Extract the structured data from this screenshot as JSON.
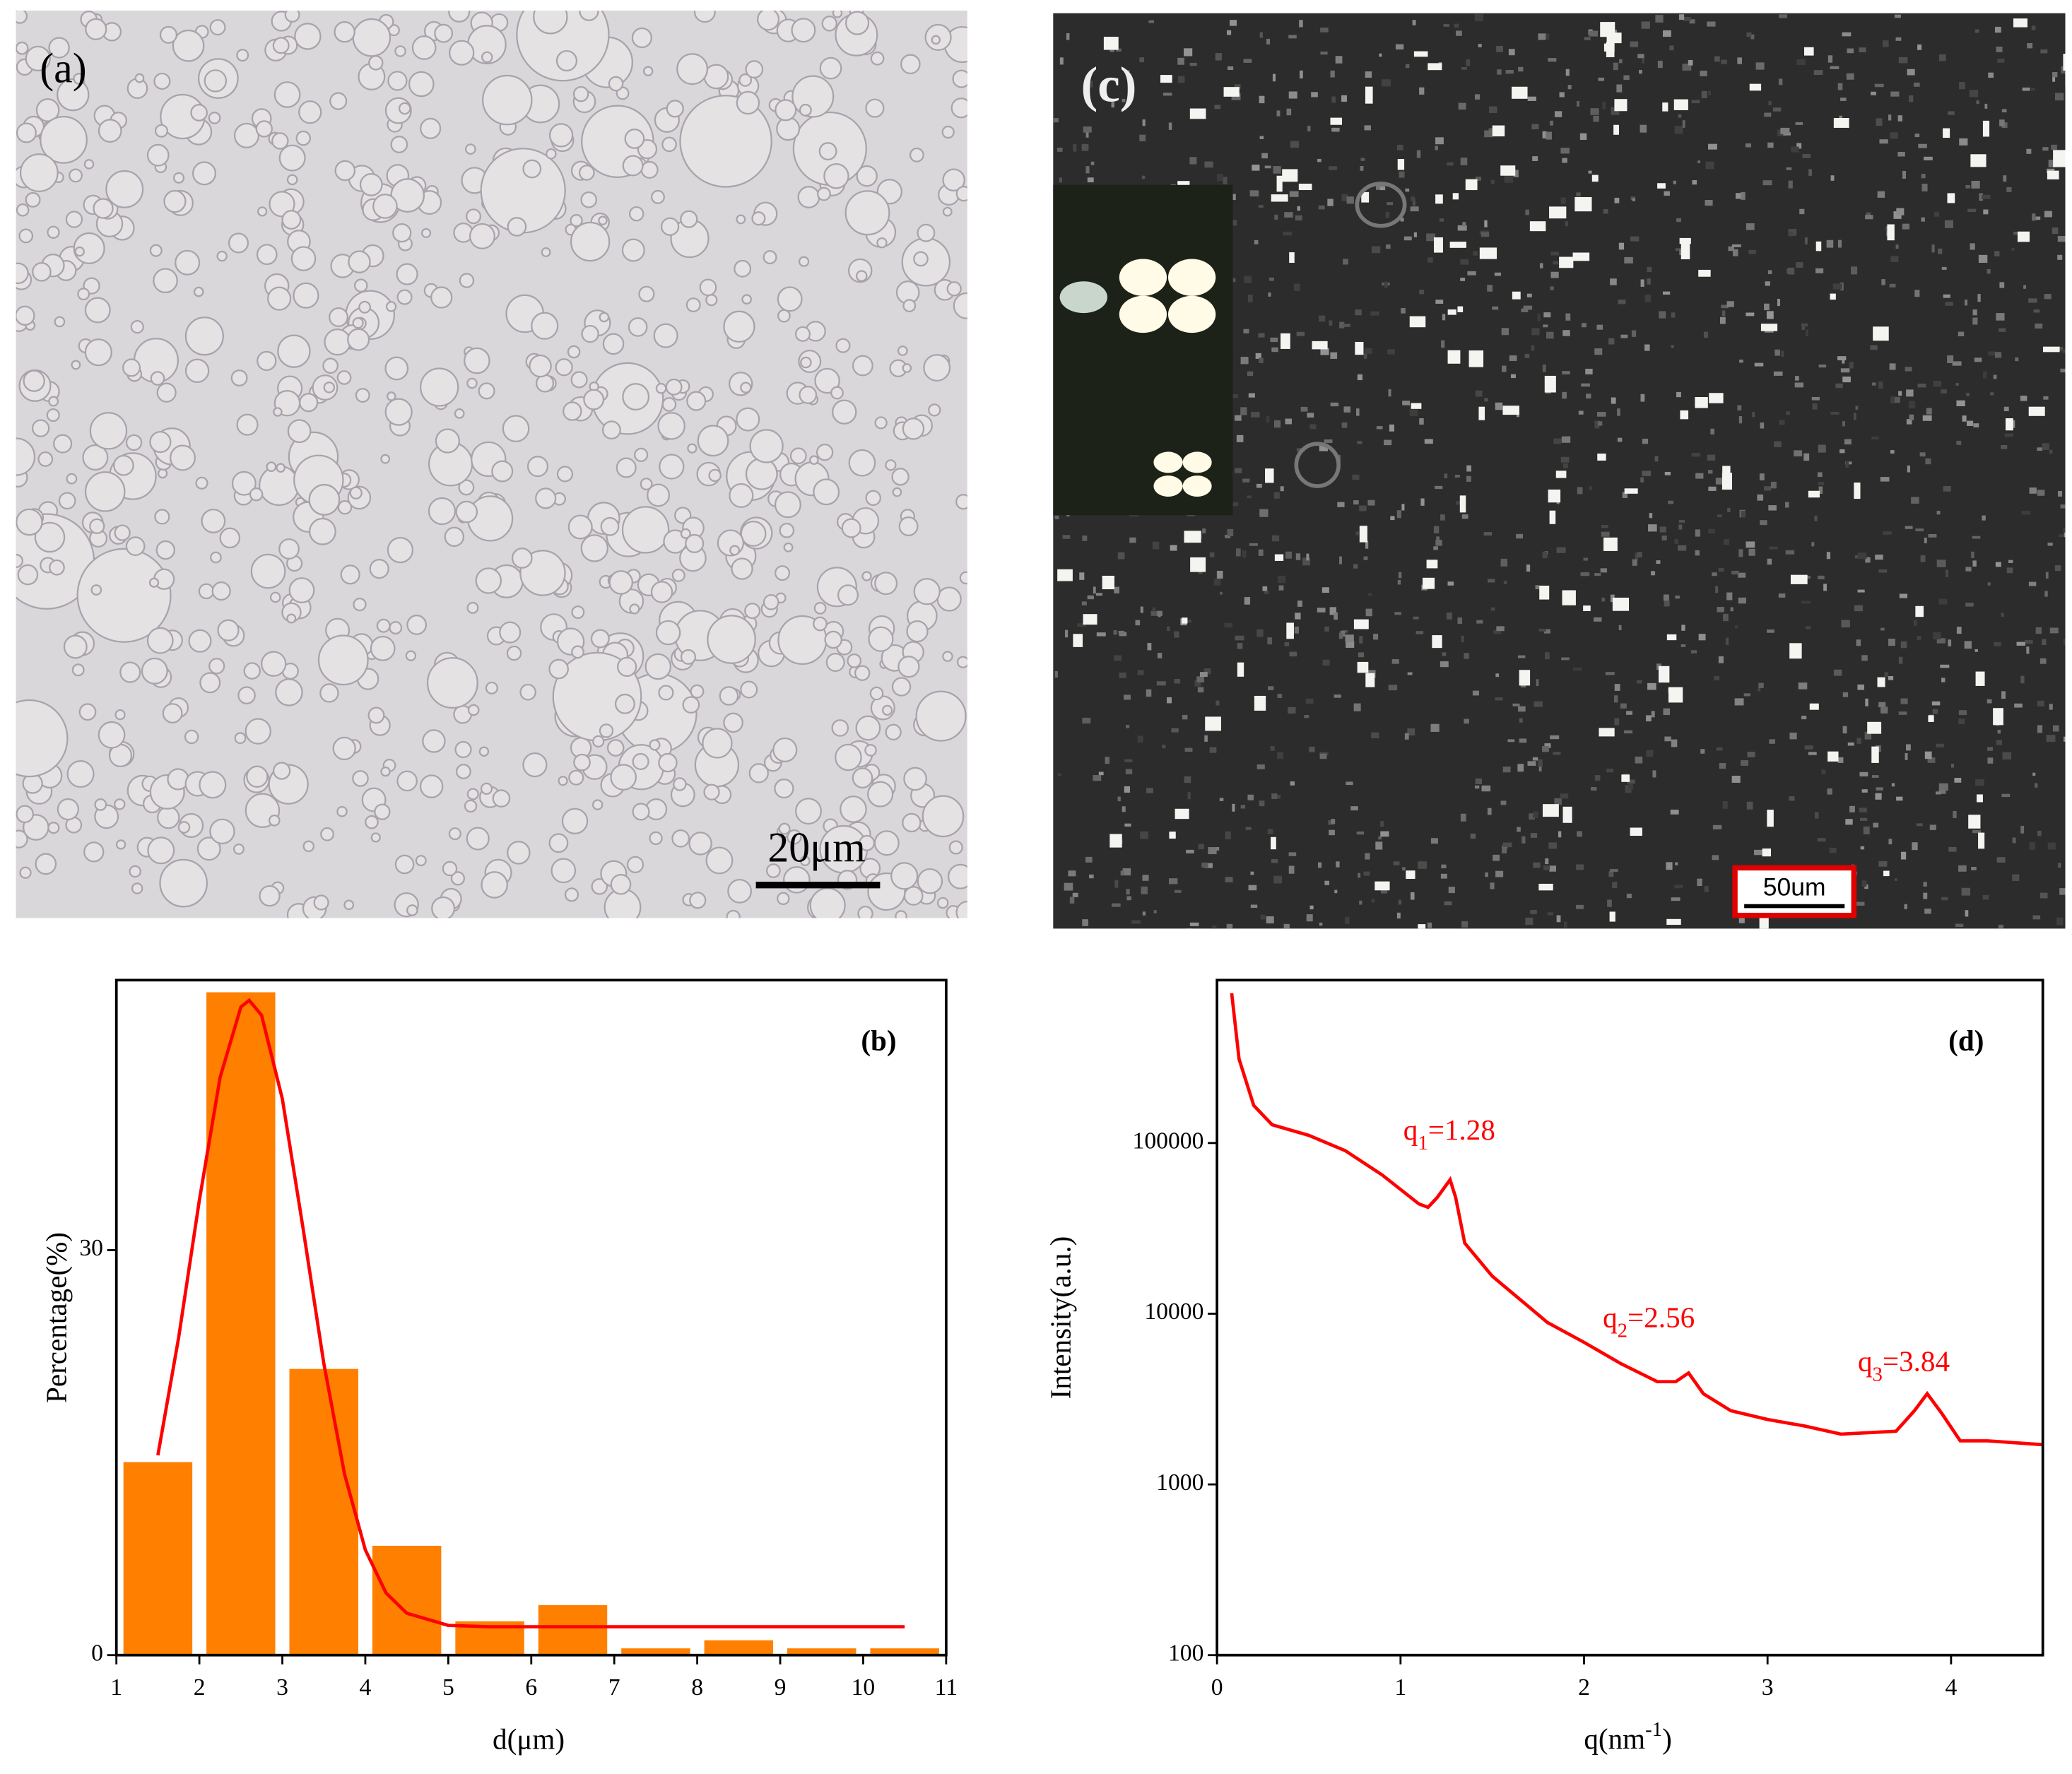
{
  "panels": {
    "a": {
      "label": "(a)",
      "scale_bar": "20μm"
    },
    "c": {
      "label": "(c)",
      "scale_bar": "50um"
    }
  },
  "chart_data": [
    {
      "type": "histogram",
      "panel_label": "(b)",
      "x_label": "d(μm)",
      "y_label": "Percentage(%)",
      "bins": [
        1,
        2,
        3,
        4,
        5,
        6,
        7,
        8,
        9,
        10,
        11
      ],
      "values": [
        14.3,
        49.1,
        21.2,
        8.1,
        2.5,
        3.7,
        0.5,
        1.1,
        0.5,
        0.5
      ],
      "color": "#ff8000",
      "fit_color": "#ff0000",
      "fit_x": [
        1.5,
        1.75,
        2,
        2.25,
        2.5,
        2.6,
        2.75,
        3,
        3.25,
        3.5,
        3.75,
        4,
        4.25,
        4.5,
        5,
        5.5,
        6,
        7,
        8,
        9,
        10,
        10.5
      ],
      "fit_y": [
        14.8,
        23.5,
        33.7,
        42.8,
        48.0,
        48.5,
        47.4,
        41.2,
        31.6,
        21.6,
        13.4,
        7.8,
        4.6,
        3.1,
        2.2,
        2.1,
        2.1,
        2.1,
        2.1,
        2.1,
        2.1,
        2.1
      ],
      "xlim": [
        1,
        11
      ],
      "xticks": [
        1,
        2,
        3,
        4,
        5,
        6,
        7,
        8,
        9,
        10,
        11
      ],
      "ylim": [
        0,
        50
      ],
      "yticks": [
        0,
        30
      ]
    },
    {
      "type": "line",
      "panel_label": "(d)",
      "x_label": {
        "text": "q(nm",
        "sup": "-1",
        "end": ")"
      },
      "y_label": "Intensity(a.u.)",
      "color": "#ff0000",
      "x": [
        0.08,
        0.12,
        0.2,
        0.3,
        0.5,
        0.7,
        0.9,
        1.1,
        1.15,
        1.2,
        1.27,
        1.3,
        1.35,
        1.5,
        1.8,
        2.0,
        2.2,
        2.4,
        2.5,
        2.57,
        2.65,
        2.8,
        3.0,
        3.2,
        3.4,
        3.7,
        3.8,
        3.87,
        3.95,
        4.05,
        4.2,
        4.5
      ],
      "values": [
        755000,
        310000,
        166000,
        128000,
        111000,
        90000,
        65000,
        44000,
        42000,
        48000,
        61000,
        48000,
        25900,
        16600,
        8900,
        6800,
        5100,
        4000,
        4000,
        4500,
        3400,
        2700,
        2400,
        2200,
        1970,
        2050,
        2700,
        3400,
        2600,
        1800,
        1800,
        1710
      ],
      "log_y": true,
      "xlim": [
        0,
        4.5
      ],
      "xticks": [
        0,
        1,
        2,
        3,
        4
      ],
      "ylim": [
        100,
        900000
      ],
      "yticks": [
        100,
        1000,
        10000,
        100000
      ],
      "annotations": [
        {
          "base": "q",
          "sub": "1",
          "text": "=1.28"
        },
        {
          "base": "q",
          "sub": "2",
          "text": "=2.56"
        },
        {
          "base": "q",
          "sub": "3",
          "text": "=3.84"
        }
      ]
    }
  ]
}
